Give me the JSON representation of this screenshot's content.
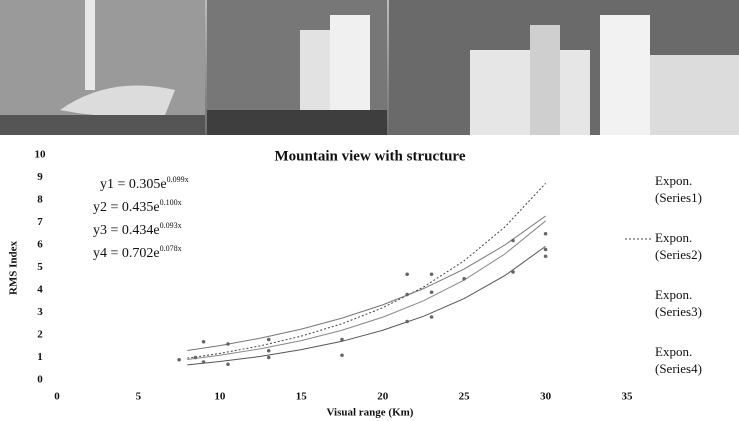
{
  "chart_data": {
    "type": "line",
    "title": "Mountain view with structure",
    "x_label": "Visual range (Km)",
    "y_label": "RMS Index",
    "xlim": [
      0,
      35
    ],
    "xticks": [
      0,
      5,
      10,
      15,
      20,
      25,
      30,
      35
    ],
    "ylim": [
      0,
      10
    ],
    "yticks": [
      0,
      1,
      2,
      3,
      4,
      5,
      6,
      7,
      8,
      9,
      10
    ],
    "grid": false,
    "legend": "right",
    "equations": [
      {
        "text": "y1 = 0.305e",
        "exponent": "0.099x"
      },
      {
        "text": "y2 = 0.435e",
        "exponent": "0.100x"
      },
      {
        "text": "y3 = 0.434e",
        "exponent": "0.093x"
      },
      {
        "text": "y4 = 0.702e",
        "exponent": "0.078x"
      }
    ],
    "x": [
      8,
      10,
      12.5,
      15,
      17.5,
      20,
      22.5,
      25,
      27.5,
      30
    ],
    "series": [
      {
        "name": "Expon. (Series1)",
        "color": "#555555",
        "dash": "none",
        "values": [
          0.67,
          0.82,
          1.05,
          1.35,
          1.72,
          2.21,
          2.83,
          3.62,
          4.64,
          5.94
        ]
      },
      {
        "name": "Expon. (Series2)",
        "color": "#444444",
        "dash": "2 2",
        "values": [
          0.97,
          1.18,
          1.52,
          1.95,
          2.5,
          3.21,
          4.13,
          5.3,
          6.8,
          8.74
        ]
      },
      {
        "name": "Expon. (Series3)",
        "color": "#888888",
        "dash": "none",
        "values": [
          0.91,
          1.1,
          1.39,
          1.75,
          2.21,
          2.79,
          3.52,
          4.44,
          5.6,
          7.07
        ]
      },
      {
        "name": "Expon. (Series4)",
        "color": "#777777",
        "dash": "none",
        "values": [
          1.31,
          1.53,
          1.86,
          2.26,
          2.75,
          3.34,
          4.06,
          4.93,
          6.0,
          7.29
        ]
      }
    ],
    "points": {
      "color": "#666666",
      "x": [
        7.5,
        8.5,
        9,
        9,
        10.5,
        10.5,
        13,
        13,
        13,
        17.5,
        17.5,
        21.5,
        21.5,
        21.5,
        23,
        23,
        23,
        25,
        28,
        28,
        30,
        30,
        30
      ],
      "values": [
        0.9,
        1.0,
        1.7,
        0.8,
        0.7,
        1.6,
        1.0,
        1.8,
        1.3,
        1.1,
        1.8,
        2.6,
        4.7,
        3.8,
        2.8,
        4.7,
        3.9,
        4.5,
        4.8,
        6.2,
        5.5,
        5.8,
        6.5
      ]
    }
  }
}
